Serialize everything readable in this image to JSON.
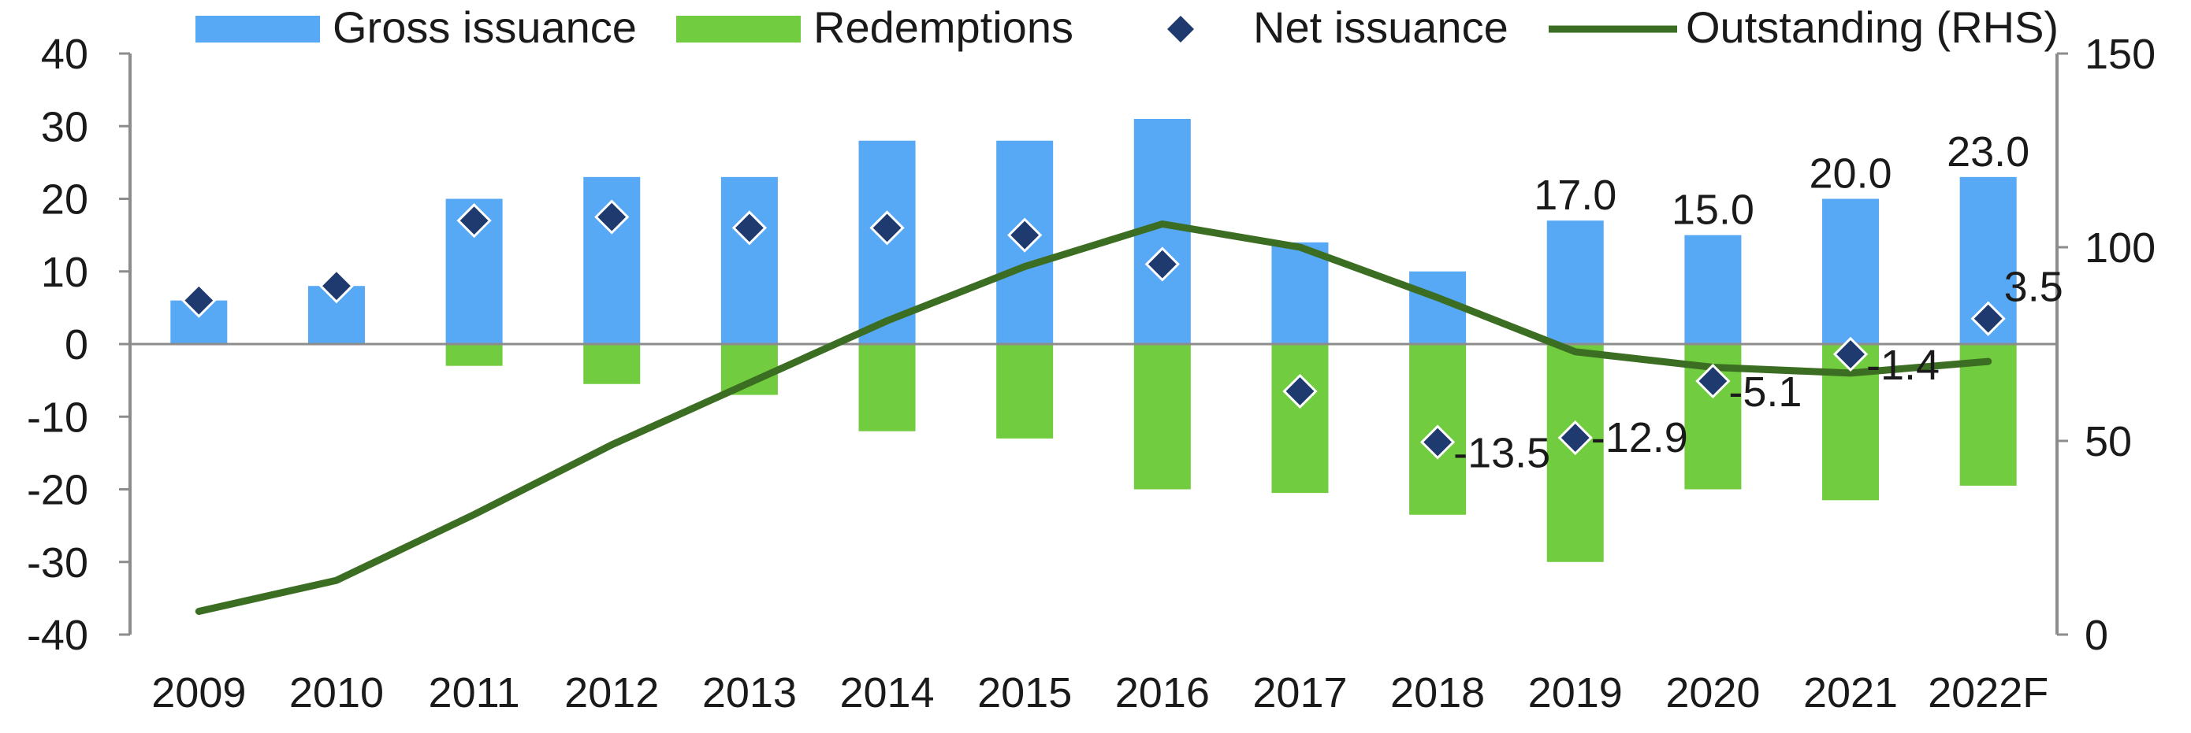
{
  "chart_data": {
    "type": "bar",
    "categories": [
      "2009",
      "2010",
      "2011",
      "2012",
      "2013",
      "2014",
      "2015",
      "2016",
      "2017",
      "2018",
      "2019",
      "2020",
      "2021",
      "2022F"
    ],
    "series": [
      {
        "name": "Gross issuance",
        "kind": "bar",
        "axis": "left",
        "color": "#57a8f5",
        "values": [
          6,
          8,
          20,
          23,
          23,
          28,
          28,
          31,
          14,
          10,
          17,
          15,
          20,
          23
        ]
      },
      {
        "name": "Redemptions",
        "kind": "bar",
        "axis": "left",
        "color": "#72cc3f",
        "values": [
          0,
          0,
          -3,
          -5.5,
          -7,
          -12,
          -13,
          -20,
          -20.5,
          -23.5,
          -30,
          -20,
          -21.5,
          -19.5
        ]
      },
      {
        "name": "Net issuance",
        "kind": "marker",
        "axis": "left",
        "color": "#1f3a6e",
        "values": [
          6,
          8,
          17,
          17.5,
          16,
          16,
          15,
          11,
          -6.5,
          -13.5,
          -12.9,
          -5.1,
          -1.4,
          3.5
        ]
      },
      {
        "name": "Outstanding (RHS)",
        "kind": "line",
        "axis": "right",
        "color": "#3b6e22",
        "values": [
          6,
          14,
          31,
          49,
          65,
          81,
          95,
          106,
          100,
          87,
          73,
          69,
          67.5,
          70.5
        ]
      }
    ],
    "gross_labels": [
      {
        "index": 10,
        "text": "17.0"
      },
      {
        "index": 11,
        "text": "15.0"
      },
      {
        "index": 12,
        "text": "20.0"
      },
      {
        "index": 13,
        "text": "23.0"
      }
    ],
    "net_labels": [
      {
        "index": 9,
        "text": "-13.5"
      },
      {
        "index": 10,
        "text": "-12.9"
      },
      {
        "index": 11,
        "text": "-5.1"
      },
      {
        "index": 12,
        "text": "-1.4"
      },
      {
        "index": 13,
        "text": "3.5"
      }
    ],
    "left_axis": {
      "ylim": [
        -40,
        40
      ],
      "ticks": [
        40,
        30,
        20,
        10,
        0,
        -10,
        -20,
        -30,
        -40
      ]
    },
    "right_axis": {
      "ylim": [
        0,
        150
      ],
      "ticks": [
        150,
        100,
        50,
        0
      ]
    },
    "legend_position": "top",
    "grid": false,
    "title": "",
    "xlabel": "",
    "ylabel": ""
  }
}
